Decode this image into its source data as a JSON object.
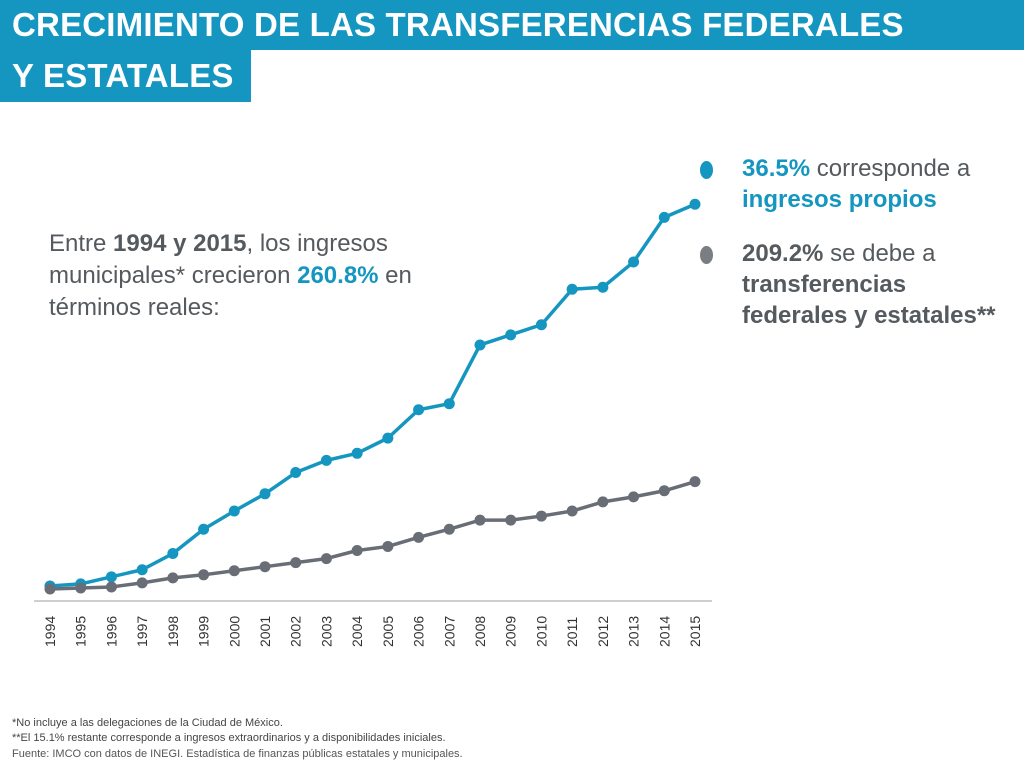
{
  "header": {
    "title_line1": "CRECIMIENTO DE LAS TRANSFERENCIAS FEDERALES",
    "title_line2": "Y ESTATALES"
  },
  "intro": {
    "t1": "Entre ",
    "t2": "1994 y 2015",
    "t3": ", los ingresos municipales* crecieron ",
    "t4": "260.8%",
    "t5": " en términos reales:"
  },
  "legend": [
    {
      "value": "36.5%",
      "text": " corresponde a ",
      "bold_text": "ingresos propios",
      "color": "#1596c0"
    },
    {
      "value": "209.2%",
      "text": " se debe a ",
      "bold_text": "transferencias federales y estatales**",
      "color": "#7a7d82"
    }
  ],
  "footnotes": {
    "f1": "*No incluye a las delegaciones de la Ciudad de México.",
    "f2": "**El 15.1% restante corresponde a ingresos extraordinarios y a disponibilidades iniciales.",
    "f3": "Fuente: IMCO con datos de INEGI. Estadística de finanzas públicas estatales y municipales."
  },
  "chart_data": {
    "type": "line",
    "x": [
      "1994",
      "1995",
      "1996",
      "1997",
      "1998",
      "1999",
      "2000",
      "2001",
      "2002",
      "2003",
      "2004",
      "2005",
      "2006",
      "2007",
      "2008",
      "2009",
      "2010",
      "2011",
      "2012",
      "2013",
      "2014",
      "2015"
    ],
    "ylim": [
      0,
      400
    ],
    "grid": false,
    "series": [
      {
        "color": "#1596c0",
        "values": [
          5,
          7,
          14,
          21,
          37,
          61,
          79,
          96,
          117,
          129,
          136,
          151,
          179,
          185,
          243,
          253,
          263,
          298,
          300,
          325,
          369,
          382
        ]
      },
      {
        "color": "#696e76",
        "values": [
          2,
          3,
          4,
          8,
          13,
          16,
          20,
          24,
          28,
          32,
          40,
          44,
          53,
          61,
          70,
          70,
          74,
          79,
          88,
          93,
          99,
          108
        ]
      }
    ]
  }
}
